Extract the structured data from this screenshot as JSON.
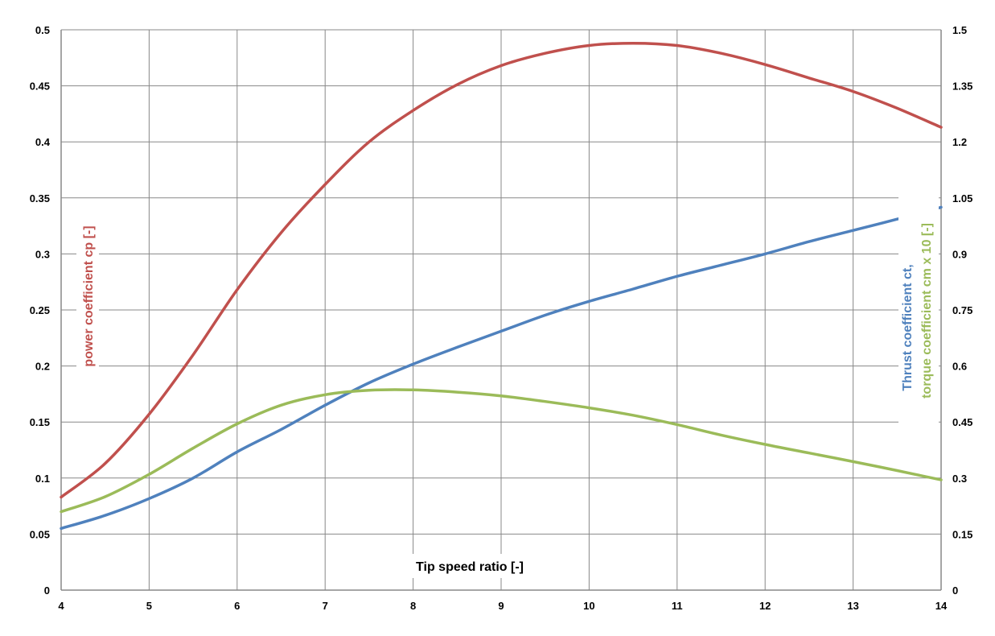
{
  "chart_data": {
    "type": "line",
    "xlabel": "Tip speed ratio [-]",
    "ylabel_left": "power coefficient cp [-]",
    "ylabel_right_line1": "Thrust coefficient ct,",
    "ylabel_right_line2": "torque coefficient cm x 10 [-]",
    "xlim": [
      4,
      14
    ],
    "ylim_left": [
      0,
      0.5
    ],
    "ylim_right": [
      0,
      1.5
    ],
    "x_ticks": [
      "4",
      "5",
      "6",
      "7",
      "8",
      "9",
      "10",
      "11",
      "12",
      "13",
      "14"
    ],
    "y_left_ticks": [
      "0",
      "0.05",
      "0.1",
      "0.15",
      "0.2",
      "0.25",
      "0.3",
      "0.35",
      "0.4",
      "0.45",
      "0.5"
    ],
    "y_right_ticks": [
      "0",
      "0.15",
      "0.3",
      "0.45",
      "0.6",
      "0.75",
      "0.9",
      "1.05",
      "1.2",
      "1.35",
      "1.5"
    ],
    "grid": true,
    "series": [
      {
        "axis": "left",
        "color": "#c0504d",
        "x": [
          4,
          4.5,
          5,
          5.5,
          6,
          6.5,
          7,
          7.5,
          8,
          8.5,
          9,
          9.5,
          10,
          10.5,
          11,
          11.5,
          12,
          12.5,
          13,
          13.5,
          14
        ],
        "values": [
          0.083,
          0.113,
          0.157,
          0.21,
          0.268,
          0.319,
          0.362,
          0.4,
          0.428,
          0.451,
          0.468,
          0.479,
          0.486,
          0.488,
          0.486,
          0.479,
          0.469,
          0.457,
          0.445,
          0.43,
          0.413
        ]
      },
      {
        "axis": "right",
        "color": "#4f81bd",
        "x": [
          4,
          4.5,
          5,
          5.5,
          6,
          6.5,
          7,
          7.5,
          8,
          8.5,
          9,
          9.5,
          10,
          10.5,
          11,
          11.5,
          12,
          12.5,
          13,
          13.5,
          14
        ],
        "values": [
          0.165,
          0.2,
          0.245,
          0.3,
          0.37,
          0.43,
          0.495,
          0.555,
          0.605,
          0.65,
          0.693,
          0.736,
          0.773,
          0.806,
          0.84,
          0.87,
          0.9,
          0.933,
          0.963,
          0.993,
          1.025
        ]
      },
      {
        "axis": "right",
        "color": "#9bbb59",
        "x": [
          4,
          4.5,
          5,
          5.5,
          6,
          6.5,
          7,
          7.5,
          8,
          8.5,
          9,
          9.5,
          10,
          10.5,
          11,
          11.5,
          12,
          12.5,
          13,
          13.5,
          14
        ],
        "values": [
          0.21,
          0.25,
          0.31,
          0.38,
          0.445,
          0.495,
          0.523,
          0.535,
          0.536,
          0.53,
          0.52,
          0.505,
          0.488,
          0.468,
          0.443,
          0.415,
          0.39,
          0.367,
          0.344,
          0.32,
          0.295
        ]
      }
    ]
  }
}
